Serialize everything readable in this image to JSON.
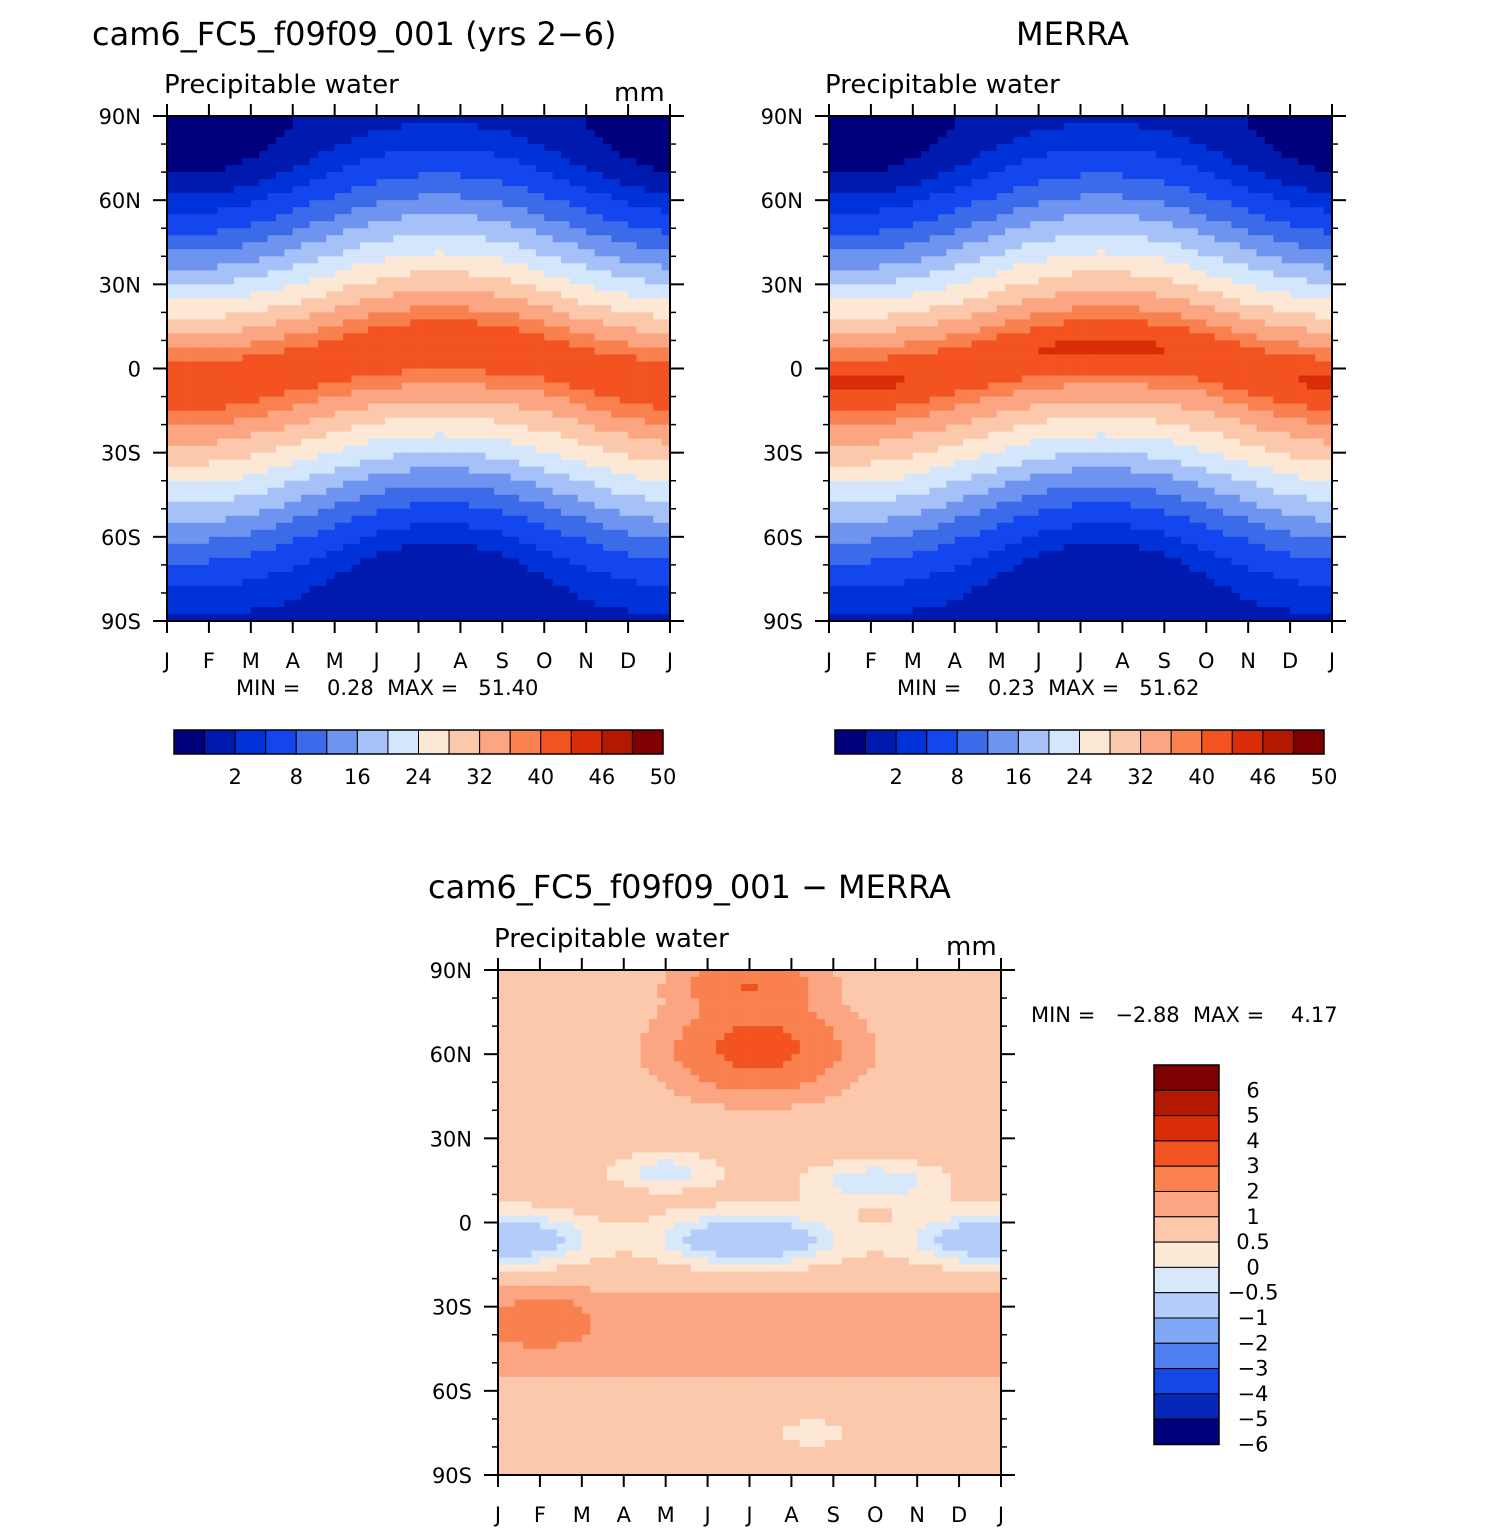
{
  "months": [
    "J",
    "F",
    "M",
    "A",
    "M",
    "J",
    "J",
    "A",
    "S",
    "O",
    "N",
    "D",
    "J"
  ],
  "lat_labels": [
    "90N",
    "60N",
    "30N",
    "0",
    "30S",
    "60S",
    "90S"
  ],
  "abs_palette": [
    "#00007f",
    "#001ab0",
    "#0032d9",
    "#1446ef",
    "#3c6be9",
    "#6f94f0",
    "#a5c1f7",
    "#d3e6fb",
    "#fde8d6",
    "#fcc8ab",
    "#fba582",
    "#f9804f",
    "#f35221",
    "#d92d07",
    "#b31800",
    "#7f0000"
  ],
  "abs_levels": [
    "2",
    "8",
    "16",
    "24",
    "32",
    "40",
    "46",
    "50"
  ],
  "diff_palette": [
    "#00007f",
    "#0627b8",
    "#1448e6",
    "#4f7ff0",
    "#7ea8f5",
    "#b3ccf9",
    "#d7e8fb",
    "#fde8d6",
    "#fcc8ab",
    "#fba582",
    "#f9804f",
    "#f35221",
    "#d92d07",
    "#b31800",
    "#7f0000"
  ],
  "diff_levels": [
    "6",
    "5",
    "4",
    "3",
    "2",
    "1",
    "0.5",
    "0",
    "−0.5",
    "−1",
    "−2",
    "−3",
    "−4",
    "−5",
    "−6"
  ],
  "panel_model": {
    "title": "cam6_FC5_f09f09_001 (yrs 2−6)",
    "subtitle": "Precipitable water",
    "units": "mm",
    "stats": "MIN =    0.28  MAX =   51.40"
  },
  "panel_obs": {
    "title": "MERRA",
    "subtitle": "Precipitable water",
    "stats": "MIN =    0.23  MAX =   51.62"
  },
  "panel_diff": {
    "title": "cam6_FC5_f09f09_001 − MERRA",
    "subtitle": "Precipitable water",
    "units": "mm",
    "stats": "MIN =   −2.88  MAX =    4.17"
  },
  "chart_data": [
    {
      "type": "heatmap",
      "title": "cam6_FC5_f09f09_001 (yrs 2−6)",
      "subtitle": "Precipitable water",
      "units": "mm",
      "x": [
        "J",
        "F",
        "M",
        "A",
        "M",
        "J",
        "J",
        "A",
        "S",
        "O",
        "N",
        "D",
        "J"
      ],
      "y": [
        "90N",
        "60N",
        "30N",
        "0",
        "30S",
        "60S",
        "90S"
      ],
      "colorbar_levels": [
        2,
        8,
        16,
        24,
        32,
        40,
        46,
        50
      ],
      "min": 0.28,
      "max": 51.4,
      "peak_latitude_by_month_deg": [
        -5,
        -5,
        -3,
        0,
        3,
        6,
        8,
        8,
        7,
        5,
        0,
        -3,
        -5
      ],
      "peak_value_mm": [
        46,
        46,
        47,
        48,
        50,
        51,
        51,
        51,
        50,
        48,
        46,
        46,
        46
      ]
    },
    {
      "type": "heatmap",
      "title": "MERRA",
      "subtitle": "Precipitable water",
      "x": [
        "J",
        "F",
        "M",
        "A",
        "M",
        "J",
        "J",
        "A",
        "S",
        "O",
        "N",
        "D",
        "J"
      ],
      "y": [
        "90N",
        "60N",
        "30N",
        "0",
        "30S",
        "60S",
        "90S"
      ],
      "colorbar_levels": [
        2,
        8,
        16,
        24,
        32,
        40,
        46,
        50
      ],
      "min": 0.23,
      "max": 51.62,
      "peak_latitude_by_month_deg": [
        -5,
        -5,
        -3,
        0,
        3,
        6,
        8,
        8,
        7,
        5,
        0,
        -3,
        -5
      ],
      "peak_value_mm": [
        48,
        48,
        50,
        50,
        51,
        51,
        51,
        51,
        50,
        50,
        48,
        47,
        48
      ]
    },
    {
      "type": "heatmap",
      "title": "cam6_FC5_f09f09_001 − MERRA",
      "subtitle": "Precipitable water",
      "units": "mm",
      "x": [
        "J",
        "F",
        "M",
        "A",
        "M",
        "J",
        "J",
        "A",
        "S",
        "O",
        "N",
        "D",
        "J"
      ],
      "y": [
        "90N",
        "60N",
        "30N",
        "0",
        "30S",
        "60S",
        "90S"
      ],
      "colorbar_levels": [
        -6,
        -5,
        -4,
        -3,
        -2,
        -1,
        -0.5,
        0,
        0.5,
        1,
        2,
        3,
        4,
        5,
        6
      ],
      "min": -2.88,
      "max": 4.17
    }
  ]
}
